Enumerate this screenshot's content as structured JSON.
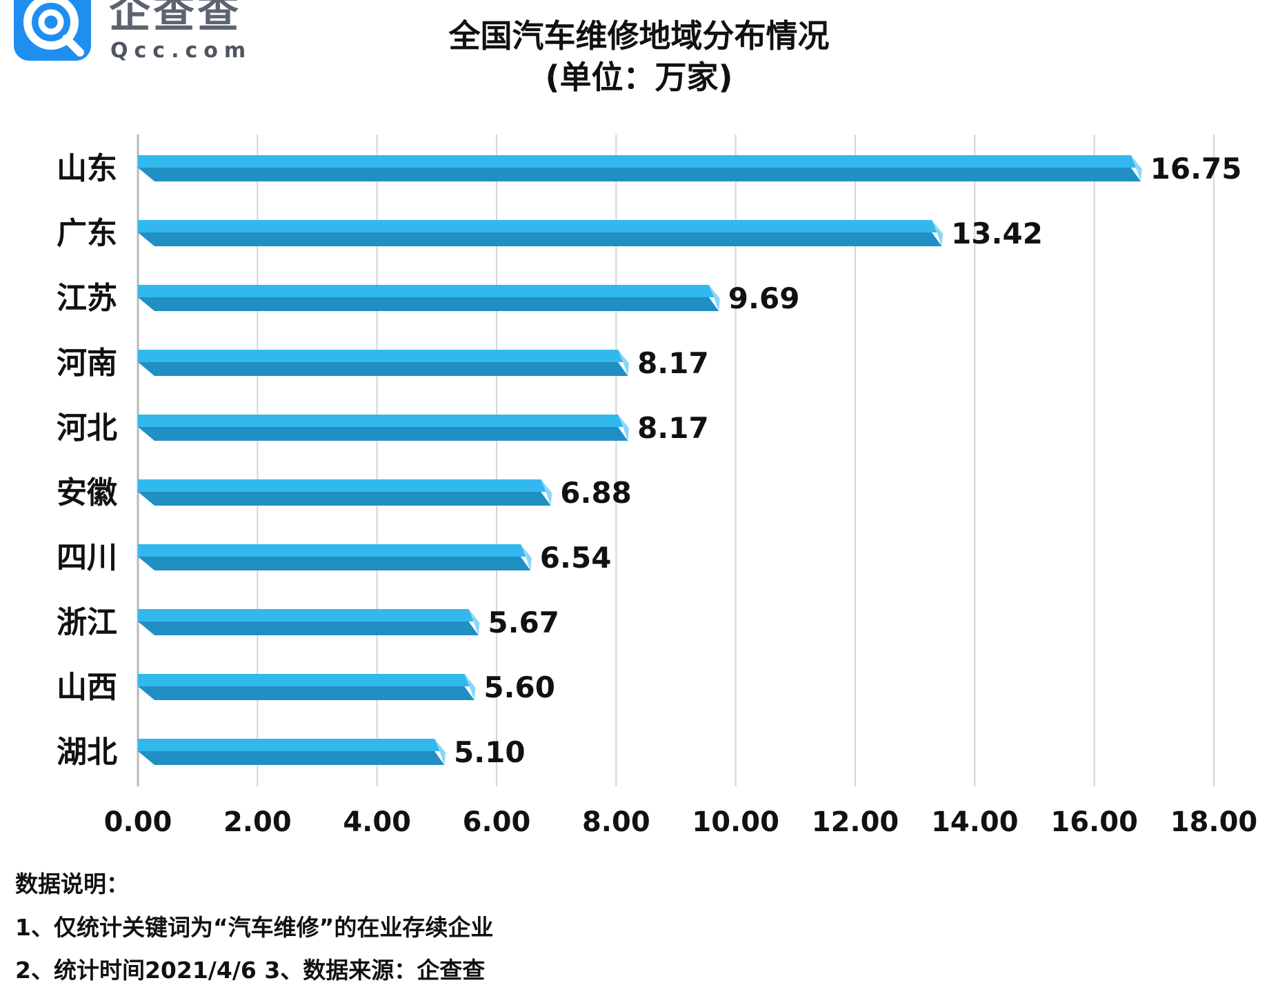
{
  "logo": {
    "name_cn": "企查查",
    "name_en": "Qcc.com"
  },
  "title": {
    "line1": "全国汽车维修地域分布情况",
    "line2": "(单位：万家)"
  },
  "chart_data": {
    "type": "bar",
    "orientation": "horizontal",
    "categories": [
      "山东",
      "广东",
      "江苏",
      "河南",
      "河北",
      "安徽",
      "四川",
      "浙江",
      "山西",
      "湖北"
    ],
    "values": [
      16.75,
      13.42,
      9.69,
      8.17,
      8.17,
      6.88,
      6.54,
      5.67,
      5.6,
      5.1
    ],
    "value_labels": [
      "16.75",
      "13.42",
      "9.69",
      "8.17",
      "8.17",
      "6.88",
      "6.54",
      "5.67",
      "5.60",
      "5.10"
    ],
    "xlim": [
      0,
      18
    ],
    "x_ticks": [
      "0.00",
      "2.00",
      "4.00",
      "6.00",
      "8.00",
      "10.00",
      "12.00",
      "14.00",
      "16.00",
      "18.00"
    ],
    "grid": true,
    "legend": "none",
    "bar_color": "#29abe2",
    "bar_top_color": "#33b8ee",
    "bar_shadow_color": "#1f8fc4"
  },
  "notes": {
    "heading": "数据说明：",
    "line1": "1、仅统计关键词为“汽车维修”的在业存续企业",
    "line2": "2、统计时间2021/4/6   3、数据来源：企查查"
  }
}
